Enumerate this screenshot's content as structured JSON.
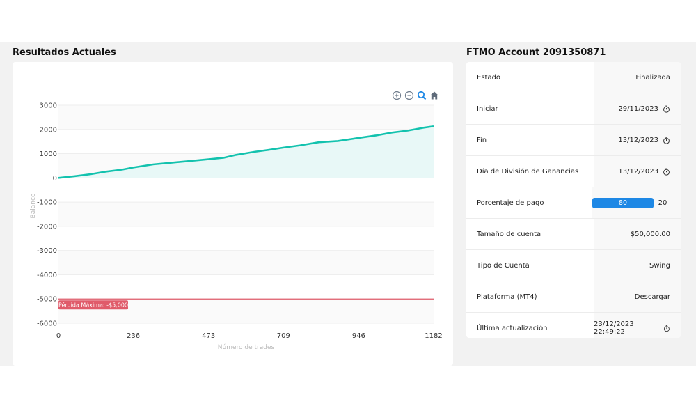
{
  "chart_section": {
    "title": "Resultados Actuales"
  },
  "account_section": {
    "title": "FTMO Account 2091350871"
  },
  "toolbar": {
    "icons": [
      "zoom-in-icon",
      "zoom-out-icon",
      "search-icon",
      "home-icon"
    ]
  },
  "account_rows": [
    {
      "label": "Estado",
      "value": "Finalizada",
      "clock": false
    },
    {
      "label": "Iniciar",
      "value": "29/11/2023",
      "clock": true
    },
    {
      "label": "Fin",
      "value": "13/12/2023",
      "clock": true
    },
    {
      "label": "Día de División de Ganancias",
      "value": "13/12/2023",
      "clock": true
    },
    {
      "label": "Porcentaje de pago",
      "payout_trader": "80",
      "payout_firm": "20"
    },
    {
      "label": "Tamaño de cuenta",
      "value": "$50,000.00",
      "clock": false
    },
    {
      "label": "Tipo de Cuenta",
      "value": "Swing",
      "clock": false
    },
    {
      "label": "Plataforma (MT4)",
      "value": "Descargar",
      "link": true
    },
    {
      "label": "Última actualización",
      "value": "23/12/2023 22:49:22",
      "clock": true
    }
  ],
  "colors": {
    "line": "#13c2ae",
    "area": "#e8f8f7",
    "max_loss": "#e05b6a",
    "payout_bar": "#1e88e5"
  },
  "chart_data": {
    "type": "area",
    "xlabel": "Número de trades",
    "ylabel": "Balance",
    "xlim": [
      0,
      1182
    ],
    "ylim": [
      -6000,
      3000
    ],
    "x_ticks": [
      0,
      236,
      473,
      709,
      946,
      1182
    ],
    "y_ticks": [
      3000,
      2000,
      1000,
      0,
      -1000,
      -2000,
      -3000,
      -4000,
      -5000,
      -6000
    ],
    "series": [
      {
        "x": [
          0,
          50,
          100,
          150,
          200,
          236,
          300,
          350,
          400,
          473,
          520,
          560,
          620,
          660,
          709,
          760,
          820,
          880,
          946,
          1000,
          1050,
          1100,
          1150,
          1182
        ],
        "values": [
          0,
          70,
          150,
          260,
          340,
          430,
          560,
          620,
          680,
          770,
          830,
          950,
          1080,
          1150,
          1250,
          1340,
          1470,
          1520,
          1650,
          1750,
          1870,
          1950,
          2070,
          2130
        ]
      }
    ],
    "annotations": [
      {
        "type": "hline",
        "y": -5000,
        "label": "Pérdida Máxima: -$5,000"
      }
    ],
    "grid": true
  }
}
